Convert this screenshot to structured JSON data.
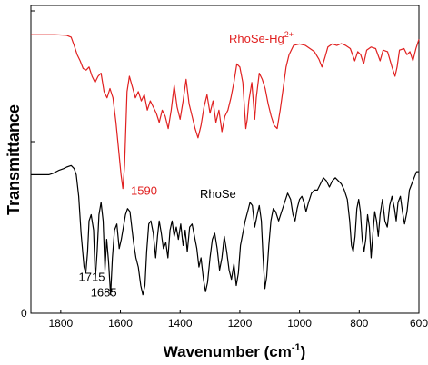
{
  "chart_data": {
    "type": "line",
    "xlabel": "Wavenumber (cm",
    "xlabel_sup": "-1",
    "xlabel_close": ")",
    "ylabel": "Transmittance",
    "xlim": [
      1900,
      600
    ],
    "x_reversed": true,
    "ylim": [
      0,
      1
    ],
    "x_ticks": [
      1800,
      1600,
      1400,
      1200,
      1000,
      800,
      600
    ],
    "y_tick_label": "0",
    "grid": false,
    "series": [
      {
        "name": "RhoSe-Hg",
        "name_sup": "2+",
        "color": "#e02020",
        "points": [
          [
            1900,
            0.905
          ],
          [
            1820,
            0.905
          ],
          [
            1780,
            0.903
          ],
          [
            1765,
            0.897
          ],
          [
            1755,
            0.87
          ],
          [
            1745,
            0.84
          ],
          [
            1735,
            0.82
          ],
          [
            1725,
            0.795
          ],
          [
            1715,
            0.79
          ],
          [
            1705,
            0.8
          ],
          [
            1695,
            0.77
          ],
          [
            1685,
            0.75
          ],
          [
            1675,
            0.77
          ],
          [
            1665,
            0.78
          ],
          [
            1655,
            0.72
          ],
          [
            1645,
            0.7
          ],
          [
            1635,
            0.73
          ],
          [
            1625,
            0.7
          ],
          [
            1615,
            0.62
          ],
          [
            1605,
            0.52
          ],
          [
            1598,
            0.45
          ],
          [
            1592,
            0.405
          ],
          [
            1586,
            0.48
          ],
          [
            1578,
            0.72
          ],
          [
            1570,
            0.77
          ],
          [
            1560,
            0.735
          ],
          [
            1550,
            0.7
          ],
          [
            1540,
            0.72
          ],
          [
            1530,
            0.69
          ],
          [
            1520,
            0.71
          ],
          [
            1510,
            0.66
          ],
          [
            1500,
            0.69
          ],
          [
            1490,
            0.67
          ],
          [
            1480,
            0.65
          ],
          [
            1470,
            0.62
          ],
          [
            1460,
            0.66
          ],
          [
            1450,
            0.64
          ],
          [
            1440,
            0.6
          ],
          [
            1430,
            0.66
          ],
          [
            1420,
            0.74
          ],
          [
            1410,
            0.67
          ],
          [
            1400,
            0.63
          ],
          [
            1390,
            0.69
          ],
          [
            1380,
            0.76
          ],
          [
            1370,
            0.68
          ],
          [
            1360,
            0.64
          ],
          [
            1350,
            0.6
          ],
          [
            1340,
            0.57
          ],
          [
            1330,
            0.61
          ],
          [
            1320,
            0.67
          ],
          [
            1310,
            0.71
          ],
          [
            1300,
            0.65
          ],
          [
            1290,
            0.69
          ],
          [
            1280,
            0.62
          ],
          [
            1270,
            0.66
          ],
          [
            1260,
            0.59
          ],
          [
            1250,
            0.64
          ],
          [
            1240,
            0.66
          ],
          [
            1230,
            0.7
          ],
          [
            1220,
            0.75
          ],
          [
            1210,
            0.81
          ],
          [
            1200,
            0.8
          ],
          [
            1190,
            0.75
          ],
          [
            1180,
            0.6
          ],
          [
            1175,
            0.63
          ],
          [
            1170,
            0.69
          ],
          [
            1160,
            0.75
          ],
          [
            1150,
            0.63
          ],
          [
            1145,
            0.7
          ],
          [
            1135,
            0.78
          ],
          [
            1125,
            0.76
          ],
          [
            1115,
            0.73
          ],
          [
            1105,
            0.68
          ],
          [
            1095,
            0.64
          ],
          [
            1085,
            0.61
          ],
          [
            1075,
            0.6
          ],
          [
            1065,
            0.66
          ],
          [
            1055,
            0.73
          ],
          [
            1045,
            0.8
          ],
          [
            1035,
            0.84
          ],
          [
            1020,
            0.87
          ],
          [
            1000,
            0.875
          ],
          [
            980,
            0.87
          ],
          [
            965,
            0.86
          ],
          [
            950,
            0.85
          ],
          [
            935,
            0.825
          ],
          [
            925,
            0.8
          ],
          [
            915,
            0.83
          ],
          [
            905,
            0.865
          ],
          [
            890,
            0.875
          ],
          [
            875,
            0.87
          ],
          [
            860,
            0.876
          ],
          [
            845,
            0.87
          ],
          [
            830,
            0.86
          ],
          [
            815,
            0.82
          ],
          [
            805,
            0.85
          ],
          [
            795,
            0.84
          ],
          [
            785,
            0.81
          ],
          [
            775,
            0.855
          ],
          [
            760,
            0.865
          ],
          [
            745,
            0.86
          ],
          [
            730,
            0.82
          ],
          [
            720,
            0.855
          ],
          [
            705,
            0.85
          ],
          [
            690,
            0.8
          ],
          [
            680,
            0.77
          ],
          [
            673,
            0.8
          ],
          [
            665,
            0.855
          ],
          [
            650,
            0.86
          ],
          [
            640,
            0.84
          ],
          [
            630,
            0.85
          ],
          [
            620,
            0.82
          ],
          [
            610,
            0.86
          ],
          [
            600,
            0.89
          ]
        ]
      },
      {
        "name": "RhoSe",
        "color": "#000000",
        "points": [
          [
            1900,
            0.45
          ],
          [
            1860,
            0.45
          ],
          [
            1840,
            0.45
          ],
          [
            1825,
            0.455
          ],
          [
            1805,
            0.465
          ],
          [
            1790,
            0.47
          ],
          [
            1780,
            0.475
          ],
          [
            1765,
            0.48
          ],
          [
            1755,
            0.47
          ],
          [
            1748,
            0.45
          ],
          [
            1740,
            0.38
          ],
          [
            1732,
            0.26
          ],
          [
            1722,
            0.15
          ],
          [
            1716,
            0.13
          ],
          [
            1710,
            0.2
          ],
          [
            1705,
            0.3
          ],
          [
            1698,
            0.32
          ],
          [
            1690,
            0.27
          ],
          [
            1684,
            0.11
          ],
          [
            1678,
            0.2
          ],
          [
            1672,
            0.32
          ],
          [
            1665,
            0.36
          ],
          [
            1658,
            0.3
          ],
          [
            1652,
            0.14
          ],
          [
            1646,
            0.24
          ],
          [
            1640,
            0.17
          ],
          [
            1633,
            0.06
          ],
          [
            1627,
            0.18
          ],
          [
            1620,
            0.27
          ],
          [
            1612,
            0.29
          ],
          [
            1604,
            0.21
          ],
          [
            1597,
            0.24
          ],
          [
            1590,
            0.28
          ],
          [
            1583,
            0.32
          ],
          [
            1576,
            0.34
          ],
          [
            1568,
            0.33
          ],
          [
            1562,
            0.28
          ],
          [
            1556,
            0.23
          ],
          [
            1548,
            0.18
          ],
          [
            1540,
            0.15
          ],
          [
            1532,
            0.09
          ],
          [
            1525,
            0.06
          ],
          [
            1518,
            0.09
          ],
          [
            1512,
            0.2
          ],
          [
            1505,
            0.29
          ],
          [
            1498,
            0.3
          ],
          [
            1490,
            0.26
          ],
          [
            1482,
            0.18
          ],
          [
            1476,
            0.25
          ],
          [
            1470,
            0.3
          ],
          [
            1463,
            0.26
          ],
          [
            1456,
            0.21
          ],
          [
            1448,
            0.23
          ],
          [
            1441,
            0.18
          ],
          [
            1434,
            0.27
          ],
          [
            1427,
            0.3
          ],
          [
            1420,
            0.25
          ],
          [
            1413,
            0.28
          ],
          [
            1406,
            0.24
          ],
          [
            1398,
            0.29
          ],
          [
            1390,
            0.22
          ],
          [
            1383,
            0.27
          ],
          [
            1376,
            0.2
          ],
          [
            1368,
            0.28
          ],
          [
            1360,
            0.29
          ],
          [
            1352,
            0.25
          ],
          [
            1344,
            0.21
          ],
          [
            1337,
            0.15
          ],
          [
            1330,
            0.18
          ],
          [
            1322,
            0.11
          ],
          [
            1315,
            0.07
          ],
          [
            1308,
            0.1
          ],
          [
            1300,
            0.18
          ],
          [
            1292,
            0.24
          ],
          [
            1284,
            0.26
          ],
          [
            1276,
            0.21
          ],
          [
            1268,
            0.14
          ],
          [
            1260,
            0.18
          ],
          [
            1252,
            0.25
          ],
          [
            1244,
            0.2
          ],
          [
            1236,
            0.14
          ],
          [
            1228,
            0.11
          ],
          [
            1220,
            0.16
          ],
          [
            1212,
            0.09
          ],
          [
            1205,
            0.13
          ],
          [
            1198,
            0.22
          ],
          [
            1190,
            0.26
          ],
          [
            1182,
            0.3
          ],
          [
            1174,
            0.33
          ],
          [
            1166,
            0.36
          ],
          [
            1158,
            0.35
          ],
          [
            1150,
            0.28
          ],
          [
            1142,
            0.32
          ],
          [
            1135,
            0.35
          ],
          [
            1128,
            0.3
          ],
          [
            1122,
            0.18
          ],
          [
            1116,
            0.08
          ],
          [
            1110,
            0.12
          ],
          [
            1103,
            0.22
          ],
          [
            1096,
            0.3
          ],
          [
            1088,
            0.34
          ],
          [
            1080,
            0.33
          ],
          [
            1070,
            0.3
          ],
          [
            1060,
            0.33
          ],
          [
            1050,
            0.36
          ],
          [
            1040,
            0.39
          ],
          [
            1030,
            0.37
          ],
          [
            1022,
            0.32
          ],
          [
            1015,
            0.3
          ],
          [
            1008,
            0.34
          ],
          [
            1000,
            0.37
          ],
          [
            992,
            0.38
          ],
          [
            985,
            0.36
          ],
          [
            978,
            0.33
          ],
          [
            970,
            0.36
          ],
          [
            960,
            0.39
          ],
          [
            950,
            0.4
          ],
          [
            940,
            0.4
          ],
          [
            930,
            0.42
          ],
          [
            920,
            0.44
          ],
          [
            910,
            0.43
          ],
          [
            900,
            0.41
          ],
          [
            890,
            0.43
          ],
          [
            880,
            0.44
          ],
          [
            870,
            0.43
          ],
          [
            860,
            0.42
          ],
          [
            850,
            0.4
          ],
          [
            840,
            0.37
          ],
          [
            832,
            0.3
          ],
          [
            826,
            0.22
          ],
          [
            820,
            0.2
          ],
          [
            814,
            0.25
          ],
          [
            808,
            0.34
          ],
          [
            802,
            0.37
          ],
          [
            796,
            0.33
          ],
          [
            790,
            0.24
          ],
          [
            784,
            0.2
          ],
          [
            778,
            0.24
          ],
          [
            772,
            0.32
          ],
          [
            766,
            0.28
          ],
          [
            760,
            0.18
          ],
          [
            754,
            0.26
          ],
          [
            748,
            0.33
          ],
          [
            742,
            0.3
          ],
          [
            736,
            0.25
          ],
          [
            730,
            0.32
          ],
          [
            722,
            0.37
          ],
          [
            714,
            0.3
          ],
          [
            706,
            0.28
          ],
          [
            698,
            0.35
          ],
          [
            690,
            0.38
          ],
          [
            682,
            0.34
          ],
          [
            676,
            0.3
          ],
          [
            670,
            0.36
          ],
          [
            662,
            0.38
          ],
          [
            655,
            0.33
          ],
          [
            648,
            0.29
          ],
          [
            640,
            0.33
          ],
          [
            632,
            0.4
          ],
          [
            624,
            0.42
          ],
          [
            616,
            0.44
          ],
          [
            608,
            0.46
          ],
          [
            600,
            0.46
          ]
        ]
      }
    ],
    "annotations": [
      {
        "text": "1590",
        "color": "#e02020",
        "x": 1565,
        "y": 0.385
      },
      {
        "text": "1715",
        "color": "#000000",
        "x": 1740,
        "y": 0.105
      },
      {
        "text": "1685",
        "color": "#000000",
        "x": 1700,
        "y": 0.055
      }
    ]
  }
}
